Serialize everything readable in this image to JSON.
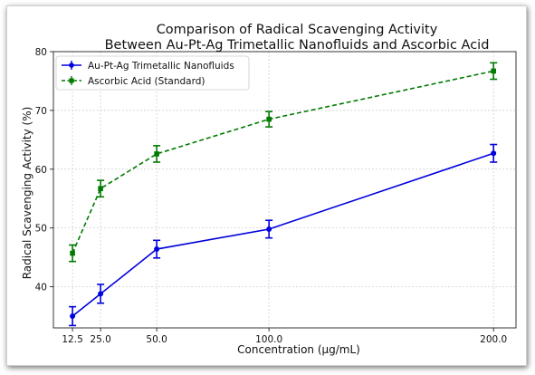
{
  "chart_data": {
    "type": "line",
    "title_lines": [
      "Comparison of Radical Scavenging Activity",
      "Between Au-Pt-Ag Trimetallic Nanofluids and Ascorbic Acid"
    ],
    "xlabel": "Concentration (µg/mL)",
    "ylabel": "Radical Scavenging Activity (%)",
    "x": [
      12.5,
      25.0,
      50.0,
      100.0,
      200.0
    ],
    "x_tick_labels": [
      "12.5",
      "25.0",
      "50.0",
      "100.0",
      "200.0"
    ],
    "xlim": [
      4,
      210
    ],
    "ylim": [
      33,
      80
    ],
    "y_ticks": [
      40,
      50,
      60,
      70,
      80
    ],
    "y_tick_labels": [
      "40",
      "50",
      "60",
      "70",
      "80"
    ],
    "grid": true,
    "legend_position": "top-left",
    "series": [
      {
        "name": "Au-Pt-Ag Trimetallic Nanofluids",
        "values": [
          35.0,
          38.8,
          46.4,
          49.8,
          62.7
        ],
        "error": [
          1.6,
          1.6,
          1.5,
          1.5,
          1.5
        ],
        "color": "#0000dd",
        "line_style": "solid",
        "marker": "circle"
      },
      {
        "name": "Ascorbic Acid (Standard)",
        "values": [
          45.7,
          56.7,
          62.6,
          68.5,
          76.7
        ],
        "error": [
          1.4,
          1.4,
          1.4,
          1.3,
          1.4
        ],
        "color": "#007a00",
        "line_style": "dashed",
        "marker": "square"
      }
    ]
  }
}
